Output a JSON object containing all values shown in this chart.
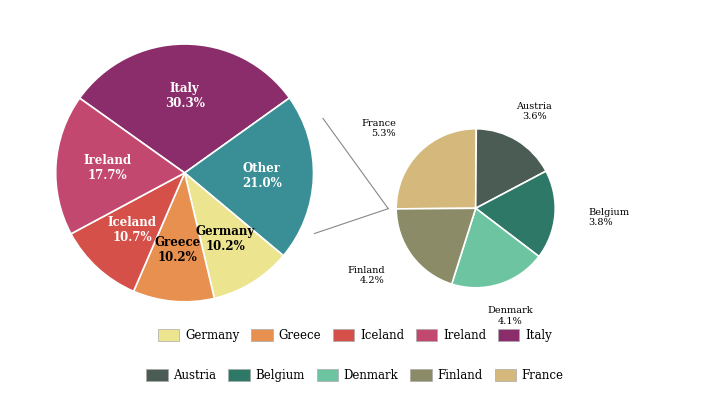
{
  "main_labels": [
    "Italy",
    "Other",
    "Germany",
    "Greece",
    "Iceland",
    "Ireland"
  ],
  "main_values": [
    30.3,
    21.0,
    10.2,
    10.2,
    10.7,
    17.7
  ],
  "main_colors": [
    "#8B2D6B",
    "#3A8F96",
    "#EDE490",
    "#E89050",
    "#D45048",
    "#C24870"
  ],
  "main_text_colors": [
    "white",
    "white",
    "black",
    "black",
    "white",
    "white"
  ],
  "sub_labels": [
    "Austria",
    "Belgium",
    "Denmark",
    "Finland",
    "France"
  ],
  "sub_values": [
    3.6,
    3.8,
    4.1,
    4.2,
    5.3
  ],
  "sub_colors": [
    "#4A5C54",
    "#2E7868",
    "#6DC4A0",
    "#8B8B68",
    "#D4B87C"
  ],
  "legend_items": [
    {
      "label": "Germany",
      "color": "#EDE490"
    },
    {
      "label": "Greece",
      "color": "#E89050"
    },
    {
      "label": "Iceland",
      "color": "#D45048"
    },
    {
      "label": "Ireland",
      "color": "#C24870"
    },
    {
      "label": "Italy",
      "color": "#8B2D6B"
    },
    {
      "label": "Austria",
      "color": "#4A5C54"
    },
    {
      "label": "Belgium",
      "color": "#2E7868"
    },
    {
      "label": "Denmark",
      "color": "#6DC4A0"
    },
    {
      "label": "Finland",
      "color": "#8B8B68"
    },
    {
      "label": "France",
      "color": "#D4B87C"
    }
  ],
  "background_color": "#FFFFFF",
  "main_startangle": 74.85,
  "sub_startangle": 90
}
